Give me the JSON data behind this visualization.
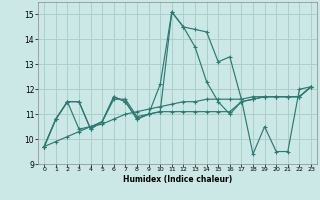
{
  "xlabel": "Humidex (Indice chaleur)",
  "ylabel": "",
  "xlim": [
    -0.5,
    23.5
  ],
  "ylim": [
    9,
    15.5
  ],
  "yticks": [
    9,
    10,
    11,
    12,
    13,
    14,
    15
  ],
  "xticks": [
    0,
    1,
    2,
    3,
    4,
    5,
    6,
    7,
    8,
    9,
    10,
    11,
    12,
    13,
    14,
    15,
    16,
    17,
    18,
    19,
    20,
    21,
    22,
    23
  ],
  "bg_color": "#cbe8e6",
  "grid_color": "#aad0cc",
  "line_color": "#2a7a72",
  "series": [
    [
      9.7,
      10.8,
      11.5,
      10.4,
      10.5,
      10.7,
      11.6,
      11.6,
      10.9,
      11.0,
      11.1,
      15.1,
      14.5,
      14.4,
      14.3,
      13.1,
      13.3,
      11.6,
      9.4,
      10.5,
      9.5,
      9.5,
      12.0,
      12.1
    ],
    [
      9.7,
      10.8,
      11.5,
      11.5,
      10.4,
      10.7,
      11.7,
      11.5,
      10.8,
      11.0,
      12.2,
      15.1,
      14.5,
      13.7,
      12.3,
      11.5,
      11.0,
      11.5,
      11.6,
      11.7,
      11.7,
      11.7,
      11.7,
      12.1
    ],
    [
      9.7,
      10.8,
      11.5,
      11.5,
      10.4,
      10.7,
      11.7,
      11.5,
      10.8,
      11.0,
      11.1,
      11.1,
      11.1,
      11.1,
      11.1,
      11.1,
      11.1,
      11.5,
      11.6,
      11.7,
      11.7,
      11.7,
      11.7,
      12.1
    ],
    [
      9.7,
      9.9,
      10.1,
      10.3,
      10.5,
      10.6,
      10.8,
      11.0,
      11.1,
      11.2,
      11.3,
      11.4,
      11.5,
      11.5,
      11.6,
      11.6,
      11.6,
      11.6,
      11.7,
      11.7,
      11.7,
      11.7,
      11.7,
      12.1
    ]
  ]
}
